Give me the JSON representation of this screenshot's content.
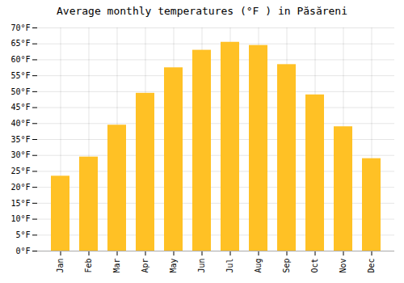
{
  "chart_data": {
    "type": "bar",
    "title": "Average monthly temperatures (°F ) in Păsăreni",
    "categories": [
      "Jan",
      "Feb",
      "Mar",
      "Apr",
      "May",
      "Jun",
      "Jul",
      "Aug",
      "Sep",
      "Oct",
      "Nov",
      "Dec"
    ],
    "values": [
      23.5,
      29.5,
      39.5,
      49.5,
      57.5,
      63.0,
      65.5,
      64.5,
      58.5,
      49.0,
      39.0,
      29.0
    ],
    "color": "#FFC125",
    "ylim": [
      0,
      70
    ],
    "yticks": [
      {
        "value": 0,
        "label": "0°F"
      },
      {
        "value": 5,
        "label": "5°F"
      },
      {
        "value": 10,
        "label": "10°F"
      },
      {
        "value": 15,
        "label": "15°F"
      },
      {
        "value": 20,
        "label": "20°F"
      },
      {
        "value": 25,
        "label": "25°F"
      },
      {
        "value": 30,
        "label": "30°F"
      },
      {
        "value": 35,
        "label": "35°F"
      },
      {
        "value": 40,
        "label": "40°F"
      },
      {
        "value": 45,
        "label": "45°F"
      },
      {
        "value": 50,
        "label": "50°F"
      },
      {
        "value": 55,
        "label": "55°F"
      },
      {
        "value": 60,
        "label": "60°F"
      },
      {
        "value": 65,
        "label": "65°F"
      },
      {
        "value": 70,
        "label": "70°F"
      }
    ],
    "grid": true
  }
}
